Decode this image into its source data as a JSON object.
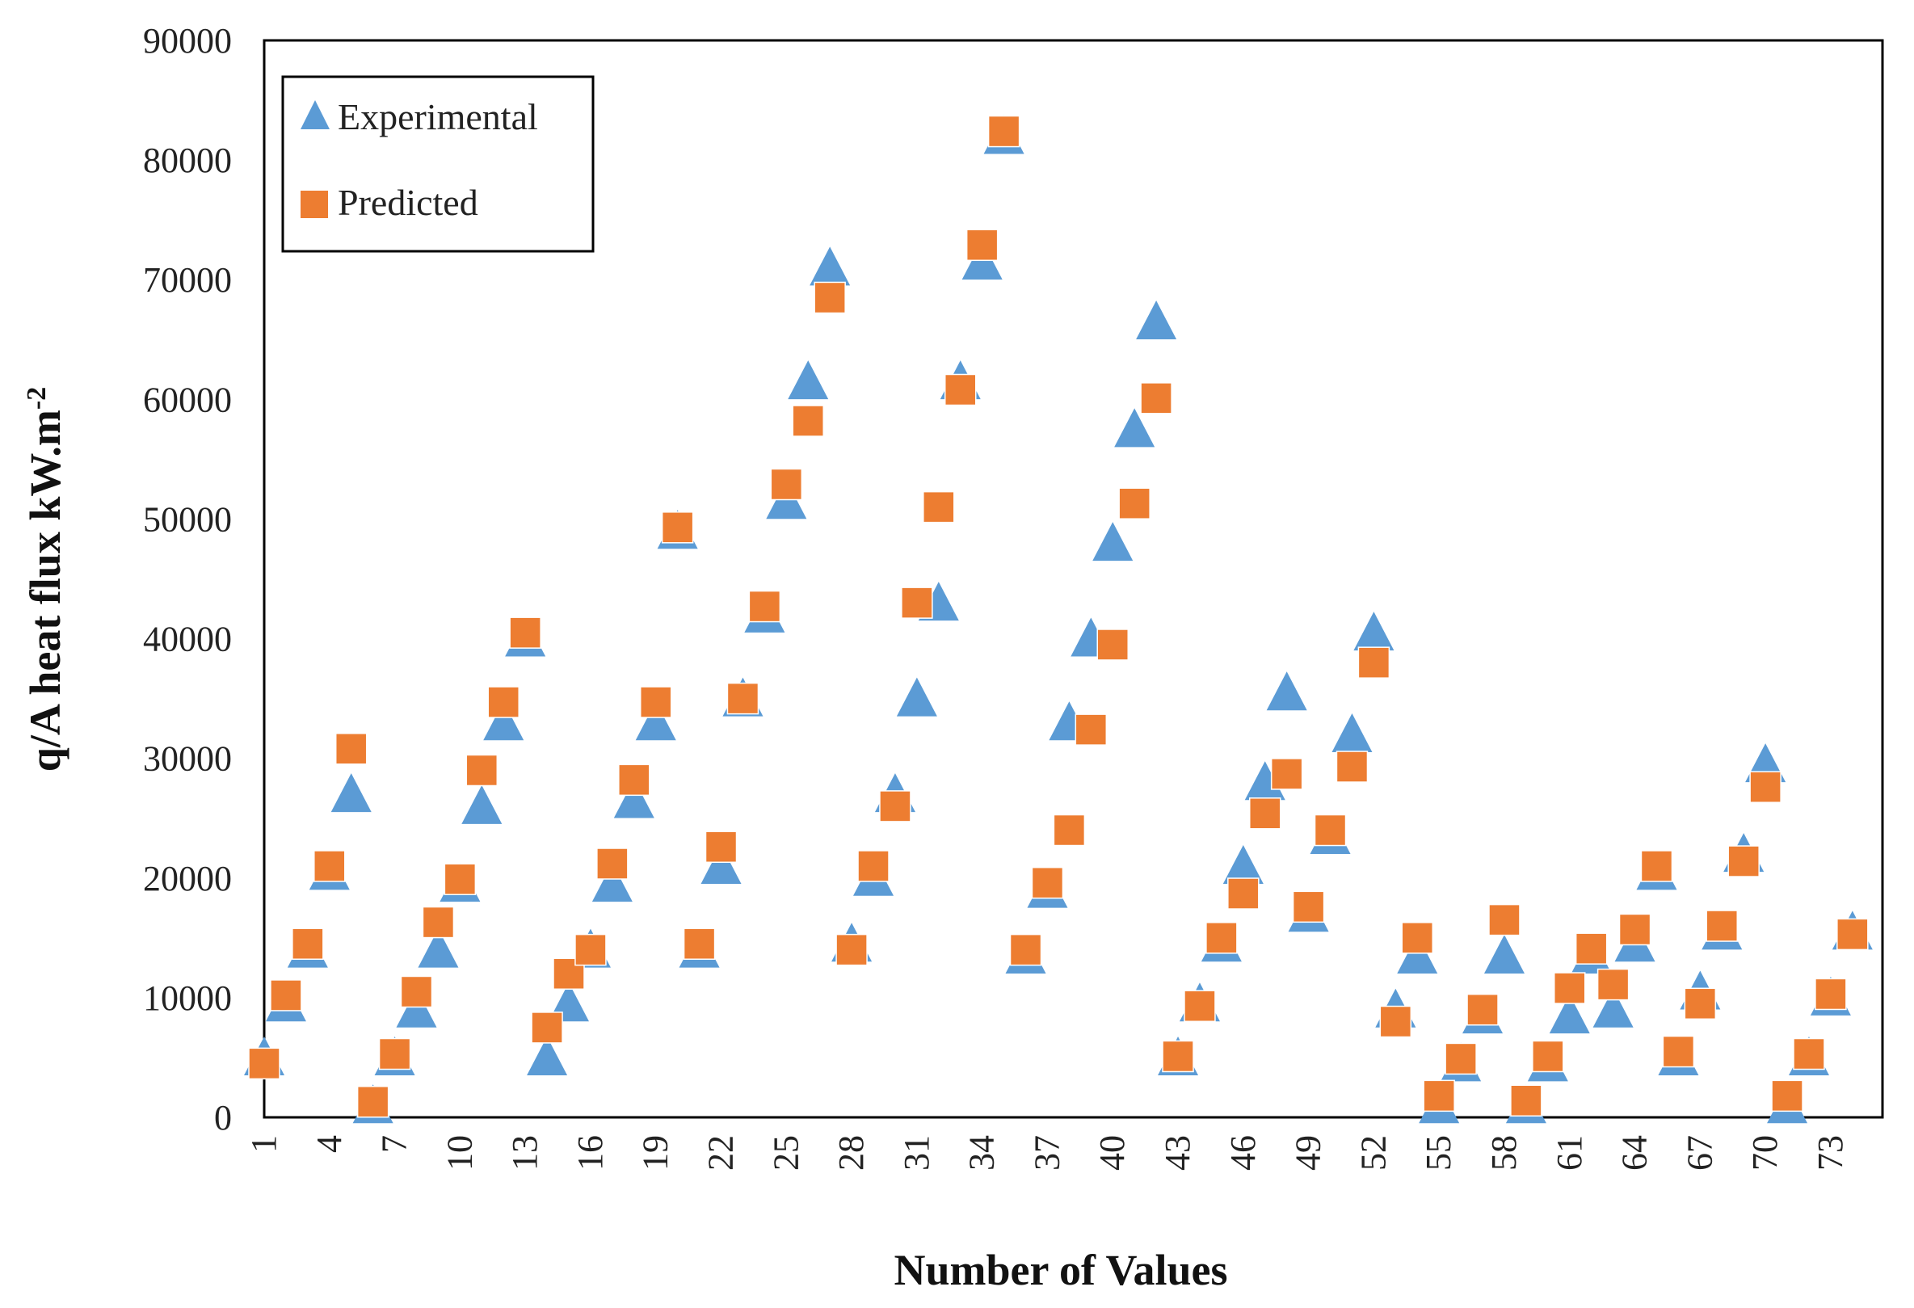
{
  "chart_data": {
    "type": "scatter",
    "title": "",
    "xlabel": "Number of Values",
    "ylabel": "q/A heat flux kW.m",
    "ylabel_superscript": "-2",
    "ylim": [
      0,
      90000
    ],
    "y_ticks": [
      "0",
      "10000",
      "20000",
      "30000",
      "40000",
      "50000",
      "60000",
      "70000",
      "80000",
      "90000"
    ],
    "x_range": [
      1,
      75
    ],
    "x_tick_labels": [
      "1",
      "4",
      "7",
      "10",
      "13",
      "16",
      "19",
      "22",
      "25",
      "28",
      "31",
      "34",
      "37",
      "40",
      "43",
      "46",
      "49",
      "52",
      "55",
      "58",
      "61",
      "64",
      "67",
      "70",
      "73"
    ],
    "grid": false,
    "legend_position": "top-left",
    "colors": {
      "experimental": "#5b9bd5",
      "predicted": "#ed7d31"
    },
    "series": [
      {
        "name": "Experimental",
        "marker": "triangle",
        "values": [
          5000,
          9500,
          14000,
          20500,
          27000,
          1000,
          5000,
          9000,
          14000,
          19500,
          26000,
          33000,
          40000,
          5000,
          9500,
          14000,
          19500,
          26500,
          33000,
          49000,
          14000,
          21000,
          35000,
          42000,
          51500,
          61500,
          71000,
          14500,
          20000,
          27000,
          35000,
          43000,
          61500,
          71500,
          82000,
          13500,
          19000,
          33000,
          40000,
          48000,
          57500,
          66500,
          5000,
          9500,
          14500,
          21000,
          28000,
          35500,
          17000,
          23500,
          32000,
          40500,
          9000,
          13500,
          1000,
          4500,
          8500,
          13500,
          1000,
          4500,
          8500,
          13500,
          9000,
          14500,
          20500,
          5000,
          10500,
          15500,
          22000,
          29500,
          1000,
          5000,
          10000,
          15500
        ]
      },
      {
        "name": "Predicted",
        "marker": "square",
        "values": [
          4500,
          10200,
          14500,
          21000,
          30800,
          1300,
          5300,
          10500,
          16300,
          19900,
          29000,
          34700,
          40500,
          7500,
          12000,
          14000,
          21200,
          28200,
          34700,
          49300,
          14500,
          22600,
          35000,
          42700,
          52900,
          58200,
          68500,
          14000,
          21000,
          26000,
          43000,
          51000,
          60800,
          72900,
          82400,
          14000,
          19600,
          24000,
          32400,
          39500,
          51300,
          60100,
          5100,
          9300,
          15000,
          18700,
          25400,
          28700,
          17600,
          24000,
          29300,
          38000,
          8000,
          15000,
          1800,
          4900,
          9000,
          16500,
          1400,
          5100,
          10800,
          14100,
          11100,
          15700,
          21000,
          5500,
          9500,
          16000,
          21400,
          27600,
          1800,
          5300,
          10300,
          15300
        ]
      }
    ]
  }
}
